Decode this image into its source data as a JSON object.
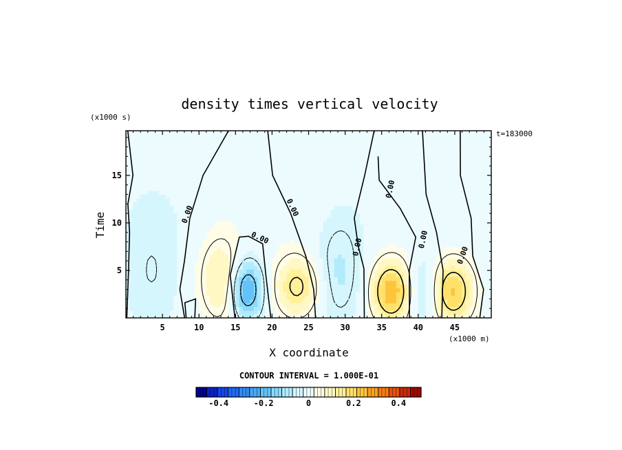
{
  "chart_data": {
    "type": "heatmap",
    "title": "density times vertical velocity",
    "xlabel": "X coordinate",
    "ylabel": "Time",
    "x_units": "(x1000 m)",
    "y_units": "(x1000 s)",
    "time_label": "t=183000",
    "contour_interval_text": "CONTOUR INTERVAL = 1.000E-01",
    "xlim": [
      0,
      50
    ],
    "ylim": [
      0,
      19.7
    ],
    "x_ticks": [
      5,
      10,
      15,
      20,
      25,
      30,
      35,
      40,
      45
    ],
    "x_tick_labels": [
      "5",
      "10",
      "15",
      "20",
      "25",
      "30",
      "35",
      "40",
      "45"
    ],
    "y_ticks": [
      5,
      10,
      15
    ],
    "y_tick_labels": [
      "5",
      "10",
      "15"
    ],
    "contour_labels": [
      "0.00",
      "0.00",
      "0.00",
      "0.00",
      "0.00",
      "0.00",
      "0.00"
    ],
    "colorbar": {
      "range": [
        -0.5,
        0.5
      ],
      "ticks": [
        -0.4,
        -0.2,
        0,
        0.2,
        0.4
      ],
      "tick_labels": [
        "-0.4",
        "-0.2",
        "0",
        "0.2",
        "0.4"
      ],
      "colors": [
        "#00008f",
        "#0a22c4",
        "#1446e6",
        "#1e6af5",
        "#2e8bf5",
        "#45a9f7",
        "#63c3f9",
        "#8bd9fb",
        "#b1ebfc",
        "#d6f6fd",
        "#ecfbfe",
        "#fffde8",
        "#fff8c4",
        "#fff09a",
        "#ffe06a",
        "#fdc43e",
        "#f9a11f",
        "#f27a12",
        "#e4520d",
        "#c82a08",
        "#9e0a04"
      ]
    },
    "features": [
      {
        "x": 13.0,
        "y": 4.0,
        "sx": 2.0,
        "sy": 3.0,
        "amp": 0.13
      },
      {
        "x": 23.5,
        "y": 3.3,
        "sx": 2.2,
        "sy": 2.2,
        "amp": 0.17
      },
      {
        "x": 36.3,
        "y": 2.8,
        "sx": 1.9,
        "sy": 2.3,
        "amp": 0.25
      },
      {
        "x": 44.8,
        "y": 2.8,
        "sx": 1.9,
        "sy": 2.3,
        "amp": 0.22
      },
      {
        "x": 16.5,
        "y": 3.0,
        "sx": 1.6,
        "sy": 2.2,
        "amp": -0.23
      },
      {
        "x": 29.0,
        "y": 4.5,
        "sx": 2.4,
        "sy": 3.8,
        "amp": -0.08
      },
      {
        "x": 40.5,
        "y": 2.8,
        "sx": 1.4,
        "sy": 2.6,
        "amp": -0.08
      },
      {
        "x": 3.5,
        "y": 4.5,
        "sx": 3.0,
        "sy": 4.5,
        "amp": -0.05
      },
      {
        "x": 4.0,
        "y": 11.5,
        "sx": 4.0,
        "sy": 3.0,
        "amp": -0.02
      },
      {
        "x": 20.0,
        "y": 11.5,
        "sx": 6.0,
        "sy": 3.5,
        "amp": 0.02
      },
      {
        "x": 30.0,
        "y": 10.5,
        "sx": 3.0,
        "sy": 3.0,
        "amp": -0.02
      }
    ],
    "annotations": [
      {
        "text": "0.00",
        "x": 8.7,
        "y": 10.8,
        "rotation": -70
      },
      {
        "text": "0.00",
        "x": 22.5,
        "y": 11.5,
        "rotation": 65
      },
      {
        "text": "0.00",
        "x": 18.2,
        "y": 8.2,
        "rotation": 25
      },
      {
        "text": "0.00",
        "x": 32.0,
        "y": 7.4,
        "rotation": -78
      },
      {
        "text": "0.00",
        "x": 36.5,
        "y": 13.5,
        "rotation": -78
      },
      {
        "text": "0.00",
        "x": 41.0,
        "y": 8.2,
        "rotation": -78
      },
      {
        "text": "0.00",
        "x": 46.4,
        "y": 6.5,
        "rotation": -70
      }
    ]
  }
}
